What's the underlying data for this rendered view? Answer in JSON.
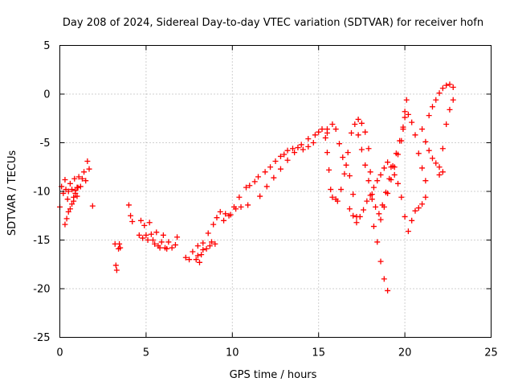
{
  "chart_data": {
    "type": "scatter",
    "title": "Day 208 of 2024, Sidereal Day-to-day VTEC variation (SDTVAR) for receiver hofn",
    "xlabel": "GPS time / hours",
    "ylabel": "SDTVAR / TECUs",
    "xlim": [
      0,
      25
    ],
    "ylim": [
      -25,
      5
    ],
    "xticks": [
      0,
      5,
      10,
      15,
      20,
      25
    ],
    "yticks": [
      -25,
      -20,
      -15,
      -10,
      -5,
      0,
      5
    ],
    "grid": true,
    "marker": "+",
    "series": [
      {
        "name": "SDTVAR",
        "color": "#ff0000",
        "x": [
          0.0,
          0.1,
          0.2,
          0.3,
          0.35,
          0.45,
          0.5,
          0.6,
          0.7,
          0.8,
          0.85,
          0.9,
          1.0,
          1.05,
          1.1,
          1.2,
          1.3,
          1.4,
          1.5,
          1.6,
          1.7,
          0.3,
          0.4,
          0.5,
          0.6,
          0.7,
          0.8,
          0.9,
          1.0,
          1.9,
          3.2,
          3.25,
          3.3,
          3.4,
          3.45,
          3.5,
          4.0,
          4.1,
          4.2,
          4.6,
          4.7,
          4.8,
          4.9,
          5.0,
          5.1,
          5.2,
          5.3,
          5.4,
          5.5,
          5.6,
          5.7,
          5.8,
          5.9,
          6.0,
          6.1,
          6.2,
          6.3,
          6.5,
          6.7,
          6.8,
          7.3,
          7.5,
          7.7,
          7.9,
          8.0,
          8.1,
          8.2,
          8.3,
          8.5,
          8.7,
          8.8,
          9.0,
          8.0,
          8.3,
          8.6,
          8.9,
          9.1,
          9.3,
          9.6,
          9.9,
          10.2,
          10.5,
          10.9,
          9.5,
          9.8,
          10.1,
          10.4,
          10.8,
          11.0,
          11.3,
          11.5,
          11.9,
          12.2,
          12.5,
          12.8,
          13.0,
          13.2,
          13.5,
          13.8,
          14.1,
          14.4,
          14.7,
          11.6,
          12.0,
          12.4,
          12.8,
          13.2,
          13.6,
          14.0,
          14.4,
          14.8,
          15.0,
          15.2,
          15.5,
          15.4,
          15.5,
          15.6,
          15.7,
          15.8,
          16.0,
          16.1,
          15.5,
          15.8,
          16.0,
          16.2,
          16.4,
          16.6,
          16.8,
          17.0,
          17.2,
          16.3,
          16.5,
          16.7,
          16.9,
          17.1,
          17.3,
          17.5,
          17.7,
          17.9,
          18.0,
          18.1,
          18.2,
          18.4,
          18.6,
          18.8,
          19.0,
          16.8,
          17.0,
          17.2,
          17.4,
          17.6,
          17.8,
          18.0,
          18.2,
          18.4,
          18.6,
          18.8,
          19.0,
          19.2,
          19.4,
          19.6,
          19.8,
          20.0,
          20.2,
          17.3,
          17.5,
          17.7,
          17.9,
          18.1,
          18.3,
          18.5,
          18.7,
          18.9,
          19.1,
          19.3,
          19.5,
          19.7,
          19.9,
          20.0,
          20.1,
          18.6,
          18.8,
          19.0,
          19.2,
          19.4,
          19.6,
          19.8,
          19.9,
          20.0,
          20.2,
          20.4,
          20.6,
          20.8,
          21.0,
          21.2,
          20.4,
          20.6,
          20.8,
          21.0,
          21.2,
          21.4,
          21.6,
          21.8,
          22.0,
          22.2,
          22.4,
          22.6,
          22.8,
          22.0,
          22.2,
          22.4,
          22.6,
          22.8,
          21.0,
          21.2,
          21.4,
          21.6,
          21.8,
          22.0,
          22.2
        ],
        "y": [
          -11.6,
          -9.5,
          -10.2,
          -8.8,
          -9.8,
          -10.8,
          -10.0,
          -9.2,
          -9.8,
          -11.0,
          -8.7,
          -9.9,
          -10.5,
          -9.6,
          -8.5,
          -9.5,
          -8.7,
          -8.0,
          -8.9,
          -6.9,
          -7.7,
          -13.4,
          -12.8,
          -12.1,
          -11.8,
          -11.3,
          -10.6,
          -10.2,
          -9.6,
          -11.5,
          -15.4,
          -17.6,
          -18.1,
          -15.9,
          -15.4,
          -15.8,
          -11.4,
          -12.5,
          -13.1,
          -14.5,
          -13.0,
          -14.8,
          -13.5,
          -14.5,
          -15.0,
          -13.2,
          -14.4,
          -15.0,
          -15.4,
          -14.2,
          -15.6,
          -15.8,
          -15.2,
          -14.5,
          -15.8,
          -15.9,
          -15.2,
          -15.8,
          -15.5,
          -14.7,
          -16.8,
          -17.0,
          -16.2,
          -17.0,
          -16.6,
          -17.3,
          -16.5,
          -16.0,
          -15.9,
          -15.6,
          -15.2,
          -15.4,
          -15.6,
          -15.3,
          -14.3,
          -13.4,
          -12.7,
          -12.1,
          -12.3,
          -12.4,
          -11.8,
          -11.6,
          -11.4,
          -13.0,
          -12.5,
          -11.6,
          -10.6,
          -9.6,
          -9.4,
          -9.0,
          -8.5,
          -8.0,
          -7.5,
          -6.9,
          -6.4,
          -6.2,
          -5.8,
          -5.6,
          -5.5,
          -5.7,
          -5.4,
          -5.0,
          -10.5,
          -9.5,
          -8.6,
          -7.7,
          -6.8,
          -6.0,
          -5.2,
          -4.6,
          -4.2,
          -3.9,
          -3.6,
          -4.0,
          -4.5,
          -6.0,
          -7.8,
          -9.8,
          -10.6,
          -10.8,
          -11.0,
          -3.6,
          -3.1,
          -3.6,
          -5.1,
          -6.5,
          -7.3,
          -8.4,
          -10.3,
          -12.6,
          -9.8,
          -8.2,
          -6.0,
          -4.0,
          -3.1,
          -2.6,
          -3.0,
          -3.9,
          -5.6,
          -8.0,
          -10.8,
          -13.6,
          -15.2,
          -17.2,
          -19.0,
          -20.2,
          -11.8,
          -12.5,
          -13.2,
          -12.6,
          -11.9,
          -11.0,
          -10.4,
          -9.6,
          -8.9,
          -8.3,
          -7.6,
          -7.0,
          -7.5,
          -8.3,
          -9.2,
          -10.6,
          -12.6,
          -14.1,
          -4.2,
          -5.7,
          -7.3,
          -8.9,
          -10.3,
          -11.6,
          -12.3,
          -11.4,
          -10.1,
          -8.7,
          -7.4,
          -6.1,
          -4.8,
          -3.4,
          -1.8,
          -0.6,
          -12.9,
          -11.6,
          -10.2,
          -8.8,
          -7.5,
          -6.2,
          -4.8,
          -3.6,
          -2.4,
          -2.1,
          -2.9,
          -4.2,
          -6.1,
          -7.6,
          -8.9,
          -13.0,
          -12.0,
          -11.7,
          -11.3,
          -10.6,
          -2.2,
          -1.3,
          -0.6,
          0.1,
          0.6,
          0.9,
          1.0,
          0.7,
          -8.3,
          -5.6,
          -3.1,
          -1.6,
          -0.6,
          -3.6,
          -4.9,
          -5.8,
          -6.6,
          -7.1,
          -7.5,
          -8.0
        ]
      }
    ]
  }
}
